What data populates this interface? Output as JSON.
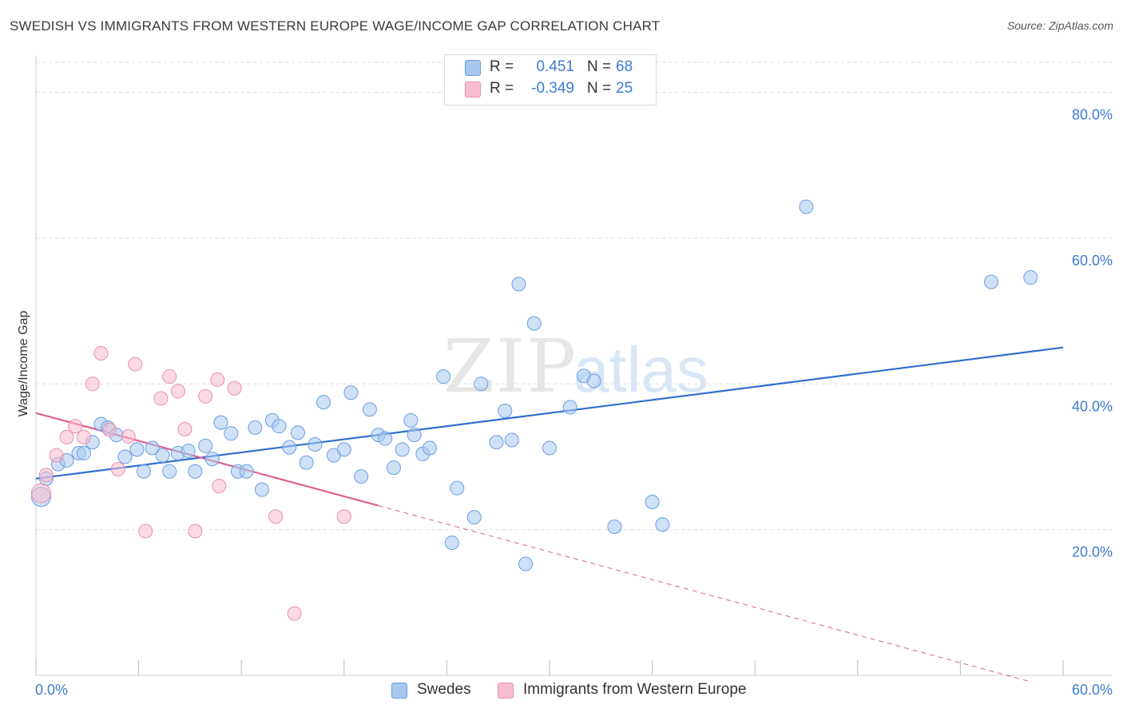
{
  "title": "SWEDISH VS IMMIGRANTS FROM WESTERN EUROPE WAGE/INCOME GAP CORRELATION CHART",
  "source": "Source: ZipAtlas.com",
  "watermark": {
    "zip": "ZIP",
    "atlas": "atlas"
  },
  "legend": {
    "rows": [
      {
        "r_label": "R =",
        "r_value": "0.451",
        "n_label": "N =",
        "n_value": "68",
        "color": "#a8c8f0",
        "border": "#6a9ee0"
      },
      {
        "r_label": "R =",
        "r_value": "-0.349",
        "n_label": "N =",
        "n_value": "25",
        "color": "#f7bcd0",
        "border": "#e890ac"
      }
    ]
  },
  "chart_data": {
    "type": "scatter",
    "title": "SWEDISH VS IMMIGRANTS FROM WESTERN EUROPE WAGE/INCOME GAP CORRELATION CHART",
    "xlabel": "",
    "ylabel": "Wage/Income Gap",
    "xlim": [
      0,
      60
    ],
    "ylim": [
      0,
      85
    ],
    "x_tick_labels": [
      "0.0%",
      "60.0%"
    ],
    "y_ticks": [
      20,
      40,
      60,
      80
    ],
    "y_tick_labels": [
      "20.0%",
      "40.0%",
      "60.0%",
      "80.0%"
    ],
    "series": [
      {
        "name": "Swedes",
        "color": "#6a9ee0",
        "fill": "#a8c8f0",
        "trend": {
          "x0": 0,
          "y0": 27.0,
          "x1": 60,
          "y1": 45.0,
          "color": "#2f6fd0"
        },
        "points": [
          [
            0.3,
            24.5
          ],
          [
            0.6,
            27.0
          ],
          [
            1.3,
            29.0
          ],
          [
            1.8,
            29.5
          ],
          [
            2.5,
            30.5
          ],
          [
            2.8,
            30.5
          ],
          [
            3.3,
            32.0
          ],
          [
            3.8,
            34.5
          ],
          [
            4.2,
            34.0
          ],
          [
            4.7,
            33.0
          ],
          [
            5.2,
            30.0
          ],
          [
            5.9,
            31.0
          ],
          [
            6.3,
            28.0
          ],
          [
            6.8,
            31.2
          ],
          [
            7.4,
            30.2
          ],
          [
            7.8,
            28.0
          ],
          [
            8.3,
            30.5
          ],
          [
            8.9,
            30.8
          ],
          [
            9.3,
            28.0
          ],
          [
            9.9,
            31.5
          ],
          [
            10.3,
            29.7
          ],
          [
            10.8,
            34.7
          ],
          [
            11.4,
            33.2
          ],
          [
            11.8,
            28.0
          ],
          [
            12.3,
            28.0
          ],
          [
            12.8,
            34.0
          ],
          [
            13.2,
            25.5
          ],
          [
            13.8,
            35.0
          ],
          [
            14.2,
            34.2
          ],
          [
            14.8,
            31.3
          ],
          [
            15.3,
            33.3
          ],
          [
            15.8,
            29.2
          ],
          [
            16.3,
            31.7
          ],
          [
            16.8,
            37.5
          ],
          [
            17.4,
            30.2
          ],
          [
            18.0,
            31.0
          ],
          [
            18.4,
            38.8
          ],
          [
            19.0,
            27.3
          ],
          [
            19.5,
            36.5
          ],
          [
            20.0,
            33.0
          ],
          [
            20.4,
            32.5
          ],
          [
            20.9,
            28.5
          ],
          [
            21.4,
            31.0
          ],
          [
            21.9,
            35.0
          ],
          [
            22.1,
            33.0
          ],
          [
            22.6,
            30.4
          ],
          [
            23.0,
            31.2
          ],
          [
            23.8,
            41.0
          ],
          [
            24.3,
            18.2
          ],
          [
            24.6,
            25.7
          ],
          [
            25.6,
            21.7
          ],
          [
            26.0,
            40.0
          ],
          [
            26.9,
            32.0
          ],
          [
            27.4,
            36.3
          ],
          [
            27.8,
            32.3
          ],
          [
            28.2,
            53.7
          ],
          [
            28.6,
            15.3
          ],
          [
            29.1,
            48.3
          ],
          [
            30.0,
            31.2
          ],
          [
            31.2,
            36.8
          ],
          [
            32.0,
            41.1
          ],
          [
            32.6,
            40.4
          ],
          [
            33.8,
            20.4
          ],
          [
            36.0,
            23.8
          ],
          [
            36.6,
            20.7
          ],
          [
            45.0,
            64.3
          ],
          [
            55.8,
            54.0
          ],
          [
            58.1,
            54.6
          ]
        ]
      },
      {
        "name": "Immigrants from Western Europe",
        "color": "#e890ac",
        "fill": "#f7bcd0",
        "trend": {
          "x0": 0,
          "y0": 36.0,
          "x1": 20,
          "y1": 23.3,
          "color": "#e06090"
        },
        "trend_ext": {
          "x0": 20,
          "y0": 23.3,
          "x1": 58,
          "y1": -0.8
        },
        "points": [
          [
            0.3,
            25.0
          ],
          [
            0.6,
            27.5
          ],
          [
            1.2,
            30.2
          ],
          [
            1.8,
            32.7
          ],
          [
            2.3,
            34.2
          ],
          [
            2.8,
            32.7
          ],
          [
            3.3,
            40.0
          ],
          [
            3.8,
            44.2
          ],
          [
            4.3,
            33.7
          ],
          [
            4.8,
            28.3
          ],
          [
            5.4,
            32.8
          ],
          [
            5.8,
            42.7
          ],
          [
            6.4,
            19.8
          ],
          [
            7.3,
            38.0
          ],
          [
            7.8,
            41.0
          ],
          [
            8.3,
            39.0
          ],
          [
            8.7,
            33.8
          ],
          [
            9.3,
            19.8
          ],
          [
            9.9,
            38.3
          ],
          [
            10.6,
            40.6
          ],
          [
            10.7,
            26.0
          ],
          [
            11.6,
            39.4
          ],
          [
            14.0,
            21.8
          ],
          [
            15.1,
            8.5
          ],
          [
            18.0,
            21.8
          ]
        ]
      }
    ]
  }
}
